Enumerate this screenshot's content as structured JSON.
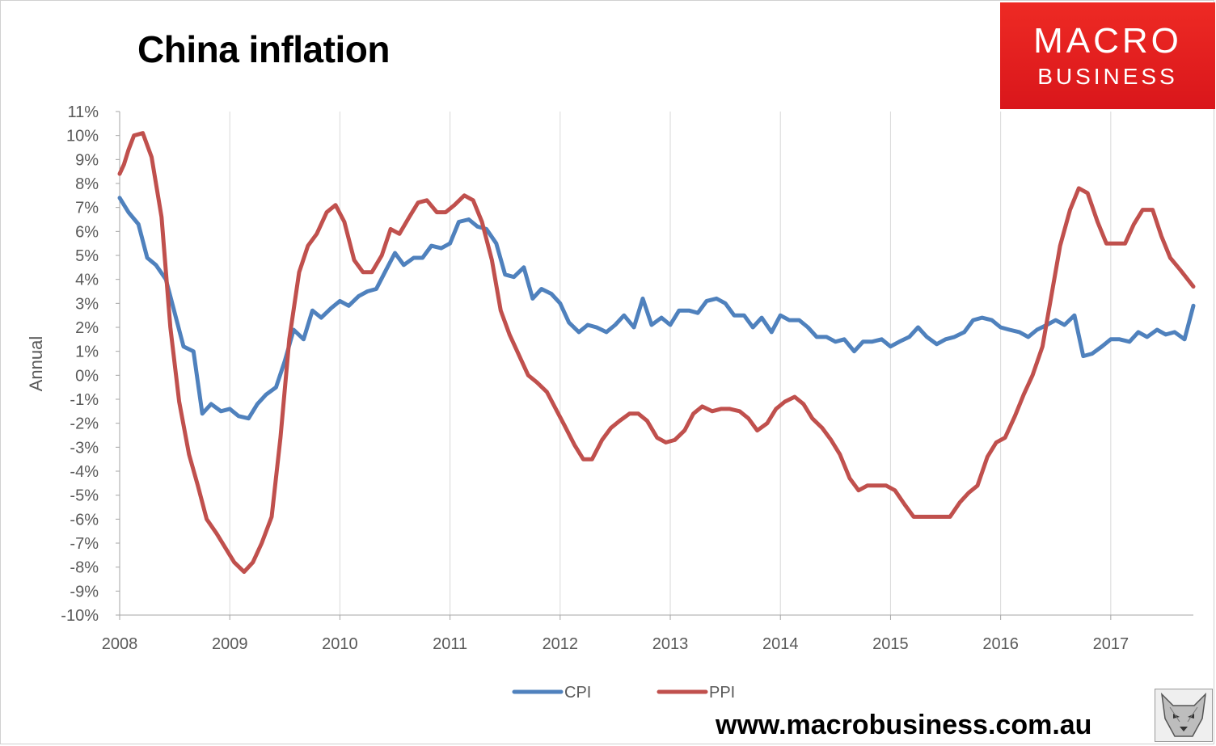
{
  "header": {
    "title": "China inflation"
  },
  "logo": {
    "line1": "MACRO",
    "line2": "BUSINESS"
  },
  "footer": {
    "url": "www.macrobusiness.com.au"
  },
  "chart_data": {
    "type": "line",
    "title": "China inflation",
    "ylabel": "Annual",
    "xlabel": "",
    "ylim": [
      -10,
      11
    ],
    "xlim": [
      2008.0,
      2017.75
    ],
    "y_ticks": [
      "-10%",
      "-9%",
      "-8%",
      "-7%",
      "-6%",
      "-5%",
      "-4%",
      "-3%",
      "-2%",
      "-1%",
      "0%",
      "1%",
      "2%",
      "3%",
      "4%",
      "5%",
      "6%",
      "7%",
      "8%",
      "9%",
      "10%",
      "11%"
    ],
    "x_ticks": [
      "2008",
      "2009",
      "2010",
      "2011",
      "2012",
      "2013",
      "2014",
      "2015",
      "2016",
      "2017"
    ],
    "grid": "vertical",
    "legend_position": "bottom",
    "colors": {
      "CPI": "#4f81bd",
      "PPI": "#c0504d",
      "grid": "#d9d9d9",
      "axis": "#a6a6a6"
    },
    "series": [
      {
        "name": "CPI",
        "points": [
          [
            2008.0,
            7.4
          ],
          [
            2008.08,
            6.8
          ],
          [
            2008.17,
            6.3
          ],
          [
            2008.25,
            4.9
          ],
          [
            2008.33,
            4.6
          ],
          [
            2008.42,
            4.0
          ],
          [
            2008.5,
            2.6
          ],
          [
            2008.58,
            1.2
          ],
          [
            2008.67,
            1.0
          ],
          [
            2008.75,
            -1.6
          ],
          [
            2008.83,
            -1.2
          ],
          [
            2008.92,
            -1.5
          ],
          [
            2009.0,
            -1.4
          ],
          [
            2009.08,
            -1.7
          ],
          [
            2009.17,
            -1.8
          ],
          [
            2009.25,
            -1.2
          ],
          [
            2009.33,
            -0.8
          ],
          [
            2009.42,
            -0.5
          ],
          [
            2009.5,
            0.6
          ],
          [
            2009.58,
            1.9
          ],
          [
            2009.67,
            1.5
          ],
          [
            2009.75,
            2.7
          ],
          [
            2009.83,
            2.4
          ],
          [
            2009.92,
            2.8
          ],
          [
            2010.0,
            3.1
          ],
          [
            2010.08,
            2.9
          ],
          [
            2010.17,
            3.3
          ],
          [
            2010.25,
            3.5
          ],
          [
            2010.33,
            3.6
          ],
          [
            2010.42,
            4.4
          ],
          [
            2010.5,
            5.1
          ],
          [
            2010.58,
            4.6
          ],
          [
            2010.67,
            4.9
          ],
          [
            2010.75,
            4.9
          ],
          [
            2010.83,
            5.4
          ],
          [
            2010.92,
            5.3
          ],
          [
            2011.0,
            5.5
          ],
          [
            2011.08,
            6.4
          ],
          [
            2011.17,
            6.5
          ],
          [
            2011.25,
            6.2
          ],
          [
            2011.33,
            6.1
          ],
          [
            2011.42,
            5.5
          ],
          [
            2011.5,
            4.2
          ],
          [
            2011.58,
            4.1
          ],
          [
            2011.67,
            4.5
          ],
          [
            2011.75,
            3.2
          ],
          [
            2011.83,
            3.6
          ],
          [
            2011.92,
            3.4
          ],
          [
            2012.0,
            3.0
          ],
          [
            2012.08,
            2.2
          ],
          [
            2012.17,
            1.8
          ],
          [
            2012.25,
            2.1
          ],
          [
            2012.33,
            2.0
          ],
          [
            2012.42,
            1.8
          ],
          [
            2012.5,
            2.1
          ],
          [
            2012.58,
            2.5
          ],
          [
            2012.67,
            2.0
          ],
          [
            2012.75,
            3.2
          ],
          [
            2012.83,
            2.1
          ],
          [
            2012.92,
            2.4
          ],
          [
            2013.0,
            2.1
          ],
          [
            2013.08,
            2.7
          ],
          [
            2013.17,
            2.7
          ],
          [
            2013.25,
            2.6
          ],
          [
            2013.33,
            3.1
          ],
          [
            2013.42,
            3.2
          ],
          [
            2013.5,
            3.0
          ],
          [
            2013.58,
            2.5
          ],
          [
            2013.67,
            2.5
          ],
          [
            2013.75,
            2.0
          ],
          [
            2013.83,
            2.4
          ],
          [
            2013.92,
            1.8
          ],
          [
            2014.0,
            2.5
          ],
          [
            2014.08,
            2.3
          ],
          [
            2014.17,
            2.3
          ],
          [
            2014.25,
            2.0
          ],
          [
            2014.33,
            1.6
          ],
          [
            2014.42,
            1.6
          ],
          [
            2014.5,
            1.4
          ],
          [
            2014.58,
            1.5
          ],
          [
            2014.67,
            1.0
          ],
          [
            2014.75,
            1.4
          ],
          [
            2014.83,
            1.4
          ],
          [
            2014.92,
            1.5
          ],
          [
            2015.0,
            1.2
          ],
          [
            2015.08,
            1.4
          ],
          [
            2015.17,
            1.6
          ],
          [
            2015.25,
            2.0
          ],
          [
            2015.33,
            1.6
          ],
          [
            2015.42,
            1.3
          ],
          [
            2015.5,
            1.5
          ],
          [
            2015.58,
            1.6
          ],
          [
            2015.67,
            1.8
          ],
          [
            2015.75,
            2.3
          ],
          [
            2015.83,
            2.4
          ],
          [
            2015.92,
            2.3
          ],
          [
            2016.0,
            2.0
          ],
          [
            2016.08,
            1.9
          ],
          [
            2016.17,
            1.8
          ],
          [
            2016.25,
            1.6
          ],
          [
            2016.33,
            1.9
          ],
          [
            2016.42,
            2.1
          ],
          [
            2016.5,
            2.3
          ],
          [
            2016.58,
            2.1
          ],
          [
            2016.67,
            2.5
          ],
          [
            2016.75,
            0.8
          ],
          [
            2016.83,
            0.9
          ],
          [
            2016.92,
            1.2
          ],
          [
            2017.0,
            1.5
          ],
          [
            2017.08,
            1.5
          ],
          [
            2017.17,
            1.4
          ],
          [
            2017.25,
            1.8
          ],
          [
            2017.33,
            1.6
          ],
          [
            2017.42,
            1.9
          ],
          [
            2017.5,
            1.7
          ],
          [
            2017.58,
            1.8
          ],
          [
            2017.67,
            1.5
          ],
          [
            2017.75,
            2.9
          ]
        ]
      },
      {
        "name": "PPI",
        "points": [
          [
            2008.0,
            8.4
          ],
          [
            2008.04,
            8.8
          ],
          [
            2008.08,
            9.4
          ],
          [
            2008.13,
            10.0
          ],
          [
            2008.21,
            10.1
          ],
          [
            2008.29,
            9.1
          ],
          [
            2008.38,
            6.6
          ],
          [
            2008.46,
            2.0
          ],
          [
            2008.54,
            -1.1
          ],
          [
            2008.63,
            -3.3
          ],
          [
            2008.71,
            -4.6
          ],
          [
            2008.79,
            -6.0
          ],
          [
            2008.88,
            -6.6
          ],
          [
            2008.96,
            -7.2
          ],
          [
            2009.04,
            -7.8
          ],
          [
            2009.13,
            -8.2
          ],
          [
            2009.21,
            -7.8
          ],
          [
            2009.29,
            -7.0
          ],
          [
            2009.38,
            -5.9
          ],
          [
            2009.46,
            -2.6
          ],
          [
            2009.54,
            1.5
          ],
          [
            2009.63,
            4.3
          ],
          [
            2009.71,
            5.4
          ],
          [
            2009.79,
            5.9
          ],
          [
            2009.88,
            6.8
          ],
          [
            2009.96,
            7.1
          ],
          [
            2010.04,
            6.4
          ],
          [
            2010.13,
            4.8
          ],
          [
            2010.21,
            4.3
          ],
          [
            2010.29,
            4.3
          ],
          [
            2010.38,
            5.0
          ],
          [
            2010.46,
            6.1
          ],
          [
            2010.54,
            5.9
          ],
          [
            2010.63,
            6.6
          ],
          [
            2010.71,
            7.2
          ],
          [
            2010.79,
            7.3
          ],
          [
            2010.88,
            6.8
          ],
          [
            2010.96,
            6.8
          ],
          [
            2011.04,
            7.1
          ],
          [
            2011.13,
            7.5
          ],
          [
            2011.21,
            7.3
          ],
          [
            2011.29,
            6.4
          ],
          [
            2011.38,
            4.8
          ],
          [
            2011.46,
            2.7
          ],
          [
            2011.54,
            1.7
          ],
          [
            2011.63,
            0.8
          ],
          [
            2011.71,
            0.0
          ],
          [
            2011.79,
            -0.3
          ],
          [
            2011.88,
            -0.7
          ],
          [
            2011.96,
            -1.4
          ],
          [
            2012.04,
            -2.1
          ],
          [
            2012.13,
            -2.9
          ],
          [
            2012.21,
            -3.5
          ],
          [
            2012.29,
            -3.5
          ],
          [
            2012.38,
            -2.7
          ],
          [
            2012.46,
            -2.2
          ],
          [
            2012.54,
            -1.9
          ],
          [
            2012.63,
            -1.6
          ],
          [
            2012.71,
            -1.6
          ],
          [
            2012.79,
            -1.9
          ],
          [
            2012.88,
            -2.6
          ],
          [
            2012.96,
            -2.8
          ],
          [
            2013.04,
            -2.7
          ],
          [
            2013.13,
            -2.3
          ],
          [
            2013.21,
            -1.6
          ],
          [
            2013.29,
            -1.3
          ],
          [
            2013.38,
            -1.5
          ],
          [
            2013.46,
            -1.4
          ],
          [
            2013.54,
            -1.4
          ],
          [
            2013.63,
            -1.5
          ],
          [
            2013.71,
            -1.8
          ],
          [
            2013.79,
            -2.3
          ],
          [
            2013.88,
            -2.0
          ],
          [
            2013.96,
            -1.4
          ],
          [
            2014.04,
            -1.1
          ],
          [
            2014.13,
            -0.9
          ],
          [
            2014.21,
            -1.2
          ],
          [
            2014.29,
            -1.8
          ],
          [
            2014.38,
            -2.2
          ],
          [
            2014.46,
            -2.7
          ],
          [
            2014.54,
            -3.3
          ],
          [
            2014.63,
            -4.3
          ],
          [
            2014.71,
            -4.8
          ],
          [
            2014.79,
            -4.6
          ],
          [
            2014.88,
            -4.6
          ],
          [
            2014.96,
            -4.6
          ],
          [
            2015.04,
            -4.8
          ],
          [
            2015.13,
            -5.4
          ],
          [
            2015.21,
            -5.9
          ],
          [
            2015.29,
            -5.9
          ],
          [
            2015.38,
            -5.9
          ],
          [
            2015.46,
            -5.9
          ],
          [
            2015.54,
            -5.9
          ],
          [
            2015.63,
            -5.3
          ],
          [
            2015.71,
            -4.9
          ],
          [
            2015.79,
            -4.6
          ],
          [
            2015.88,
            -3.4
          ],
          [
            2015.96,
            -2.8
          ],
          [
            2016.04,
            -2.6
          ],
          [
            2016.13,
            -1.7
          ],
          [
            2016.21,
            -0.8
          ],
          [
            2016.29,
            0.0
          ],
          [
            2016.38,
            1.2
          ],
          [
            2016.46,
            3.3
          ],
          [
            2016.54,
            5.4
          ],
          [
            2016.63,
            6.9
          ],
          [
            2016.71,
            7.8
          ],
          [
            2016.79,
            7.6
          ],
          [
            2016.88,
            6.4
          ],
          [
            2016.96,
            5.5
          ],
          [
            2017.04,
            5.5
          ],
          [
            2017.13,
            5.5
          ],
          [
            2017.21,
            6.3
          ],
          [
            2017.29,
            6.9
          ],
          [
            2017.38,
            6.9
          ],
          [
            2017.46,
            5.8
          ],
          [
            2017.54,
            4.9
          ],
          [
            2017.63,
            4.4
          ],
          [
            2017.75,
            3.7
          ]
        ]
      }
    ]
  }
}
